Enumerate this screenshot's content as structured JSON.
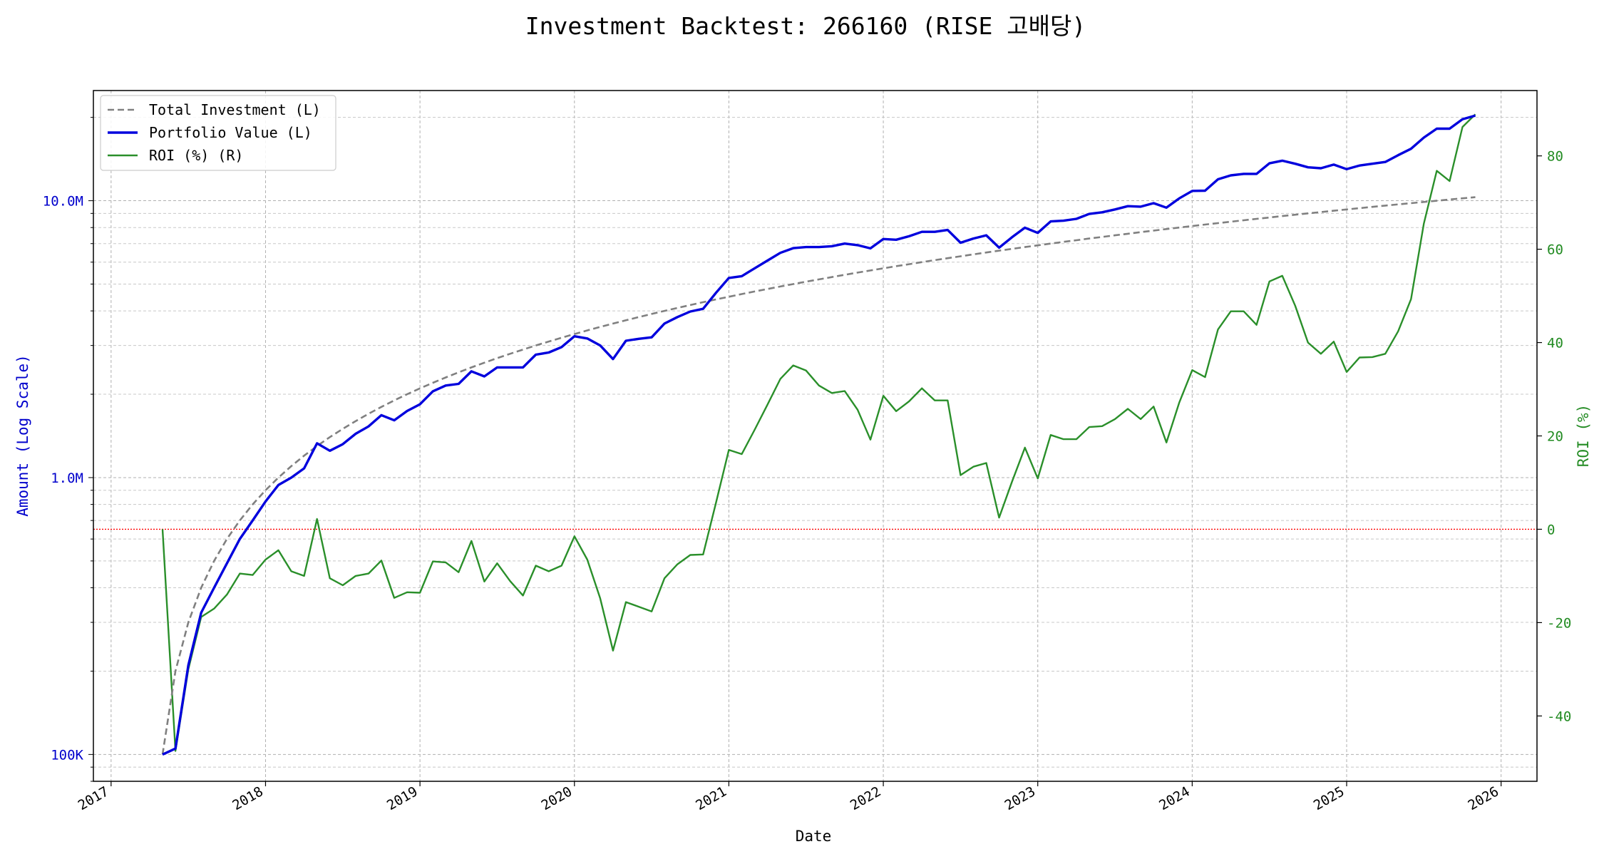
{
  "chart_data": {
    "type": "line",
    "title": "Investment Backtest: 266160 (RISE 고배당)",
    "xlabel": "Date",
    "ylabel_left": "Amount (Log Scale)",
    "ylabel_right": "ROI (%)",
    "y_left_scale": "log",
    "y_left_range": [
      80000,
      25000000
    ],
    "y_left_ticks": [
      {
        "value": 100000,
        "label": "100K"
      },
      {
        "value": 1000000,
        "label": "1.0M"
      },
      {
        "value": 10000000,
        "label": "10.0M"
      }
    ],
    "y_right_range": [
      -54,
      94
    ],
    "y_right_ticks": [
      -40,
      -20,
      0,
      20,
      40,
      60,
      80
    ],
    "x_range": [
      "2016-11-20",
      "2026-03-25"
    ],
    "x_ticks": [
      "2017",
      "2018",
      "2019",
      "2020",
      "2021",
      "2022",
      "2023",
      "2024",
      "2025",
      "2026"
    ],
    "grid": true,
    "legend_position": "upper-left",
    "zero_line": {
      "value": 0,
      "axis": "right",
      "color": "#ff0000",
      "style": "dotted"
    },
    "colors": {
      "left_axis": "#0000cc",
      "right_axis": "#228b22",
      "investment": "#808080",
      "portfolio": "#0000dd",
      "roi": "#2a8f2a",
      "zero_line": "#ff0000"
    },
    "dates": [
      "2017-05",
      "2017-06",
      "2017-07",
      "2017-08",
      "2017-09",
      "2017-10",
      "2017-11",
      "2017-12",
      "2018-01",
      "2018-02",
      "2018-03",
      "2018-04",
      "2018-05",
      "2018-06",
      "2018-07",
      "2018-08",
      "2018-09",
      "2018-10",
      "2018-11",
      "2018-12",
      "2019-01",
      "2019-02",
      "2019-03",
      "2019-04",
      "2019-05",
      "2019-06",
      "2019-07",
      "2019-08",
      "2019-09",
      "2019-10",
      "2019-11",
      "2019-12",
      "2020-01",
      "2020-02",
      "2020-03",
      "2020-04",
      "2020-05",
      "2020-06",
      "2020-07",
      "2020-08",
      "2020-09",
      "2020-10",
      "2020-11",
      "2020-12",
      "2021-01",
      "2021-02",
      "2021-03",
      "2021-04",
      "2021-05",
      "2021-06",
      "2021-07",
      "2021-08",
      "2021-09",
      "2021-10",
      "2021-11",
      "2021-12",
      "2022-01",
      "2022-02",
      "2022-03",
      "2022-04",
      "2022-05",
      "2022-06",
      "2022-07",
      "2022-08",
      "2022-09",
      "2022-10",
      "2022-11",
      "2022-12",
      "2023-01",
      "2023-02",
      "2023-03",
      "2023-04",
      "2023-05",
      "2023-06",
      "2023-07",
      "2023-08",
      "2023-09",
      "2023-10",
      "2023-11",
      "2023-12",
      "2024-01",
      "2024-02",
      "2024-03",
      "2024-04",
      "2024-05",
      "2024-06",
      "2024-07",
      "2024-08",
      "2024-09",
      "2024-10",
      "2024-11",
      "2024-12",
      "2025-01",
      "2025-02",
      "2025-03",
      "2025-04",
      "2025-05",
      "2025-06",
      "2025-07",
      "2025-08",
      "2025-09",
      "2025-10",
      "2025-11"
    ],
    "series": [
      {
        "name": "Total Investment (L)",
        "axis": "left",
        "style": "dashed",
        "values": [
          100000,
          200000,
          300000,
          400000,
          500000,
          600000,
          700000,
          800000,
          900000,
          1000000,
          1100000,
          1200000,
          1300000,
          1400000,
          1500000,
          1600000,
          1700000,
          1800000,
          1900000,
          2000000,
          2100000,
          2200000,
          2300000,
          2400000,
          2500000,
          2600000,
          2700000,
          2800000,
          2900000,
          3000000,
          3100000,
          3200000,
          3300000,
          3400000,
          3500000,
          3600000,
          3700000,
          3800000,
          3900000,
          4000000,
          4100000,
          4200000,
          4300000,
          4400000,
          4500000,
          4600000,
          4700000,
          4800000,
          4900000,
          5000000,
          5100000,
          5200000,
          5300000,
          5400000,
          5500000,
          5600000,
          5700000,
          5800000,
          5900000,
          6000000,
          6100000,
          6200000,
          6300000,
          6400000,
          6500000,
          6600000,
          6700000,
          6800000,
          6900000,
          7000000,
          7100000,
          7200000,
          7300000,
          7400000,
          7500000,
          7600000,
          7700000,
          7800000,
          7900000,
          8000000,
          8100000,
          8200000,
          8300000,
          8400000,
          8500000,
          8600000,
          8700000,
          8800000,
          8900000,
          9000000,
          9100000,
          9200000,
          9300000,
          9400000,
          9500000,
          9600000,
          9700000,
          9800000,
          9900000,
          10000000,
          10100000,
          10200000,
          10300000
        ]
      },
      {
        "name": "Portfolio Value (L)",
        "axis": "left",
        "style": "solid",
        "values": [
          100000,
          105000,
          210000,
          325000,
          400000,
          490000,
          600000,
          700000,
          820000,
          940000,
          1000000,
          1080000,
          1330000,
          1250000,
          1320000,
          1440000,
          1530000,
          1680000,
          1610000,
          1740000,
          1840000,
          2050000,
          2150000,
          2180000,
          2420000,
          2320000,
          2500000,
          2500000,
          2500000,
          2780000,
          2830000,
          2960000,
          3240000,
          3180000,
          3000000,
          2680000,
          3120000,
          3170000,
          3210000,
          3600000,
          3800000,
          3980000,
          4070000,
          4650000,
          5260000,
          5340000,
          5700000,
          6080000,
          6480000,
          6740000,
          6800000,
          6800000,
          6850000,
          7000000,
          6910000,
          6730000,
          7270000,
          7230000,
          7440000,
          7720000,
          7720000,
          7840000,
          7050000,
          7300000,
          7500000,
          6770000,
          7380000,
          7990000,
          7650000,
          8420000,
          8470000,
          8600000,
          8960000,
          9080000,
          9300000,
          9560000,
          9520000,
          9800000,
          9440000,
          10200000,
          10850000,
          10870000,
          11950000,
          12350000,
          12500000,
          12500000,
          13650000,
          13950000,
          13600000,
          13200000,
          13100000,
          13500000,
          13000000,
          13400000,
          13600000,
          13800000,
          14600000,
          15400000,
          16900000,
          18200000,
          18200000,
          19700000,
          20300000
        ]
      },
      {
        "name": "ROI (%) (R)",
        "axis": "right",
        "style": "solid",
        "values": [
          0.0,
          -47.5,
          -30.0,
          -18.8,
          -17.0,
          -14.0,
          -9.5,
          -9.8,
          -6.5,
          -4.5,
          -9.0,
          -10.0,
          2.2,
          -10.5,
          -12.0,
          -10.0,
          -9.5,
          -6.7,
          -14.7,
          -13.5,
          -13.6,
          -6.9,
          -7.1,
          -9.2,
          -2.5,
          -11.2,
          -7.3,
          -11.1,
          -14.2,
          -7.8,
          -9.0,
          -7.8,
          -1.5,
          -6.5,
          -14.8,
          -26.0,
          -15.6,
          -16.6,
          -17.6,
          -10.5,
          -7.5,
          -5.5,
          -5.4,
          5.7,
          17.0,
          16.1,
          21.3,
          26.7,
          32.2,
          35.1,
          34.0,
          30.8,
          29.2,
          29.6,
          25.6,
          19.2,
          28.6,
          25.3,
          27.4,
          30.2,
          27.6,
          27.6,
          11.6,
          13.4,
          14.2,
          2.5,
          10.2,
          17.5,
          10.9,
          20.2,
          19.3,
          19.3,
          21.9,
          22.1,
          23.6,
          25.8,
          23.6,
          26.3,
          18.6,
          27.2,
          34.1,
          32.6,
          42.8,
          46.7,
          46.7,
          43.8,
          53.1,
          54.3,
          47.9,
          40.0,
          37.6,
          40.2,
          33.7,
          36.8,
          36.9,
          37.6,
          42.4,
          49.3,
          65.5,
          76.8,
          74.6,
          86.2,
          88.9
        ]
      }
    ]
  }
}
